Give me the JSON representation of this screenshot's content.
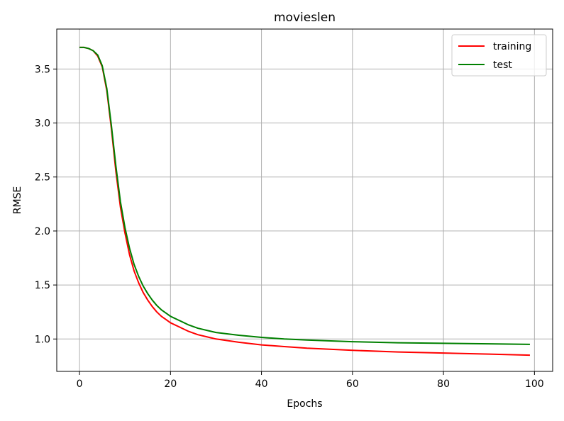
{
  "chart_data": {
    "type": "line",
    "title": "movieslen",
    "xlabel": "Epochs",
    "ylabel": "RMSE",
    "xlim": [
      -5,
      104
    ],
    "ylim": [
      0.7,
      3.87
    ],
    "xticks": [
      0,
      20,
      40,
      60,
      80,
      100
    ],
    "yticks": [
      1.0,
      1.5,
      2.0,
      2.5,
      3.0,
      3.5
    ],
    "xtick_labels": [
      "0",
      "20",
      "40",
      "60",
      "80",
      "100"
    ],
    "ytick_labels": [
      "1.0",
      "1.5",
      "2.0",
      "2.5",
      "3.0",
      "3.5"
    ],
    "grid": true,
    "legend_position": "top-right",
    "series": [
      {
        "name": "training",
        "color": "#ff0000",
        "x": [
          0,
          1,
          2,
          3,
          4,
          5,
          6,
          7,
          8,
          9,
          10,
          11,
          12,
          13,
          14,
          15,
          16,
          17,
          18,
          19,
          20,
          22,
          24,
          26,
          28,
          30,
          35,
          40,
          45,
          50,
          60,
          70,
          80,
          90,
          99
        ],
        "y": [
          3.7,
          3.7,
          3.69,
          3.67,
          3.62,
          3.52,
          3.3,
          2.95,
          2.55,
          2.22,
          1.98,
          1.78,
          1.63,
          1.52,
          1.43,
          1.36,
          1.3,
          1.25,
          1.21,
          1.18,
          1.15,
          1.11,
          1.07,
          1.04,
          1.02,
          1.0,
          0.97,
          0.945,
          0.93,
          0.915,
          0.895,
          0.88,
          0.87,
          0.86,
          0.85
        ]
      },
      {
        "name": "test",
        "color": "#008000",
        "x": [
          0,
          1,
          2,
          3,
          4,
          5,
          6,
          7,
          8,
          9,
          10,
          11,
          12,
          13,
          14,
          15,
          16,
          17,
          18,
          19,
          20,
          22,
          24,
          26,
          28,
          30,
          35,
          40,
          45,
          50,
          60,
          70,
          80,
          90,
          99
        ],
        "y": [
          3.7,
          3.7,
          3.69,
          3.67,
          3.63,
          3.53,
          3.32,
          2.98,
          2.6,
          2.27,
          2.03,
          1.84,
          1.69,
          1.58,
          1.49,
          1.42,
          1.36,
          1.31,
          1.27,
          1.24,
          1.21,
          1.17,
          1.13,
          1.1,
          1.08,
          1.06,
          1.035,
          1.015,
          1.0,
          0.99,
          0.975,
          0.965,
          0.96,
          0.955,
          0.95
        ]
      }
    ]
  }
}
